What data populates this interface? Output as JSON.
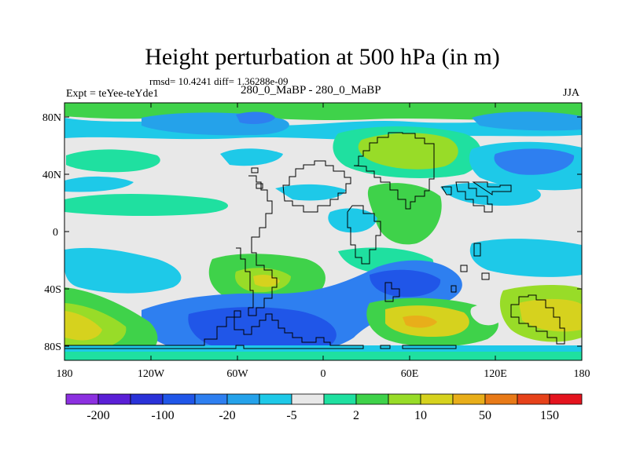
{
  "title": "Height perturbation at 500 hPa (in m)",
  "stats_line": "rmsd= 10.4241 diff= 1.36288e-09",
  "experiment_label": "Expt = teYee-teYde1",
  "center_label": "280_0_MaBP - 280_0_MaBP",
  "season": "JJA",
  "lat_labels": [
    "80N",
    "40N",
    "0",
    "40S",
    "80S"
  ],
  "lon_labels": [
    "180",
    "120W",
    "60W",
    "0",
    "60E",
    "120E",
    "180"
  ],
  "colorbar": {
    "colors": [
      "#8c30e0",
      "#5a1fd6",
      "#2a32d8",
      "#2056e8",
      "#2e7ff0",
      "#25a2ea",
      "#1ec9e8",
      "#e8e8e8",
      "#1fe0a0",
      "#3fd24a",
      "#98dc28",
      "#d6d21e",
      "#e8ae1a",
      "#e87a18",
      "#e6421a",
      "#e4141e"
    ],
    "labels": [
      "-200",
      "-100",
      "-20",
      "-5",
      "2",
      "10",
      "50",
      "150"
    ]
  }
}
